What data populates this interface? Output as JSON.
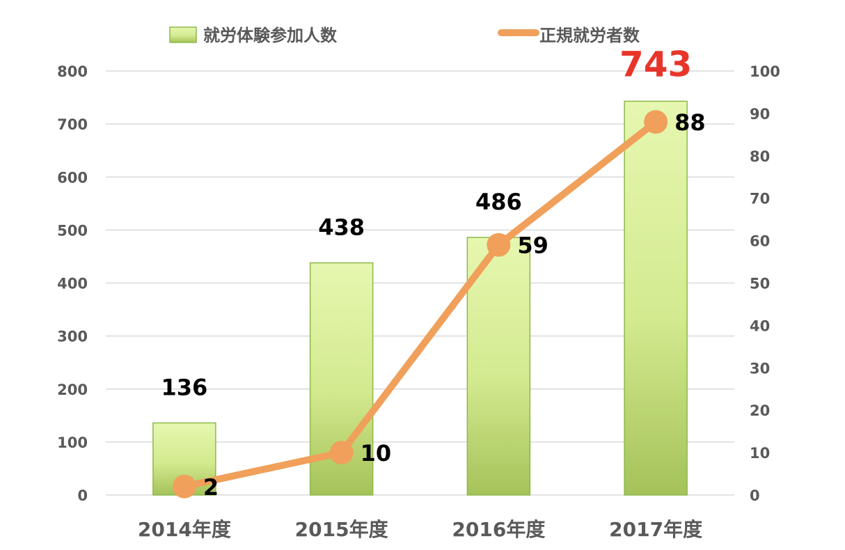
{
  "chart_data": {
    "type": "bar",
    "categories": [
      "2014年度",
      "2015年度",
      "2016年度",
      "2017年度"
    ],
    "series": [
      {
        "name": "就労体験参加人数",
        "type": "bar",
        "axis": "left",
        "values": [
          136,
          438,
          486,
          743
        ]
      },
      {
        "name": "正規就労者数",
        "type": "line",
        "axis": "right",
        "values": [
          2,
          10,
          59,
          88
        ]
      }
    ],
    "y_left": {
      "min": 0,
      "max": 800,
      "step": 100,
      "ticks": [
        "0",
        "100",
        "200",
        "300",
        "400",
        "500",
        "600",
        "700",
        "800"
      ]
    },
    "y_right": {
      "min": 0,
      "max": 100,
      "step": 10,
      "ticks": [
        "0",
        "10",
        "20",
        "30",
        "40",
        "50",
        "60",
        "70",
        "80",
        "90",
        "100"
      ]
    },
    "bar_labels": [
      "136",
      "438",
      "486",
      ""
    ],
    "line_labels": [
      "2",
      "10",
      "59",
      "88"
    ],
    "highlight_label": "743",
    "grid": true,
    "legend_position": "top",
    "colors": {
      "bar_top": "#e6f7b0",
      "bar_bottom": "#a5c25a",
      "bar_border": "#8db84a",
      "line": "#f0a05a",
      "highlight": "#e8352a",
      "grid": "#d9d9d9",
      "axis_text": "#595959"
    }
  }
}
